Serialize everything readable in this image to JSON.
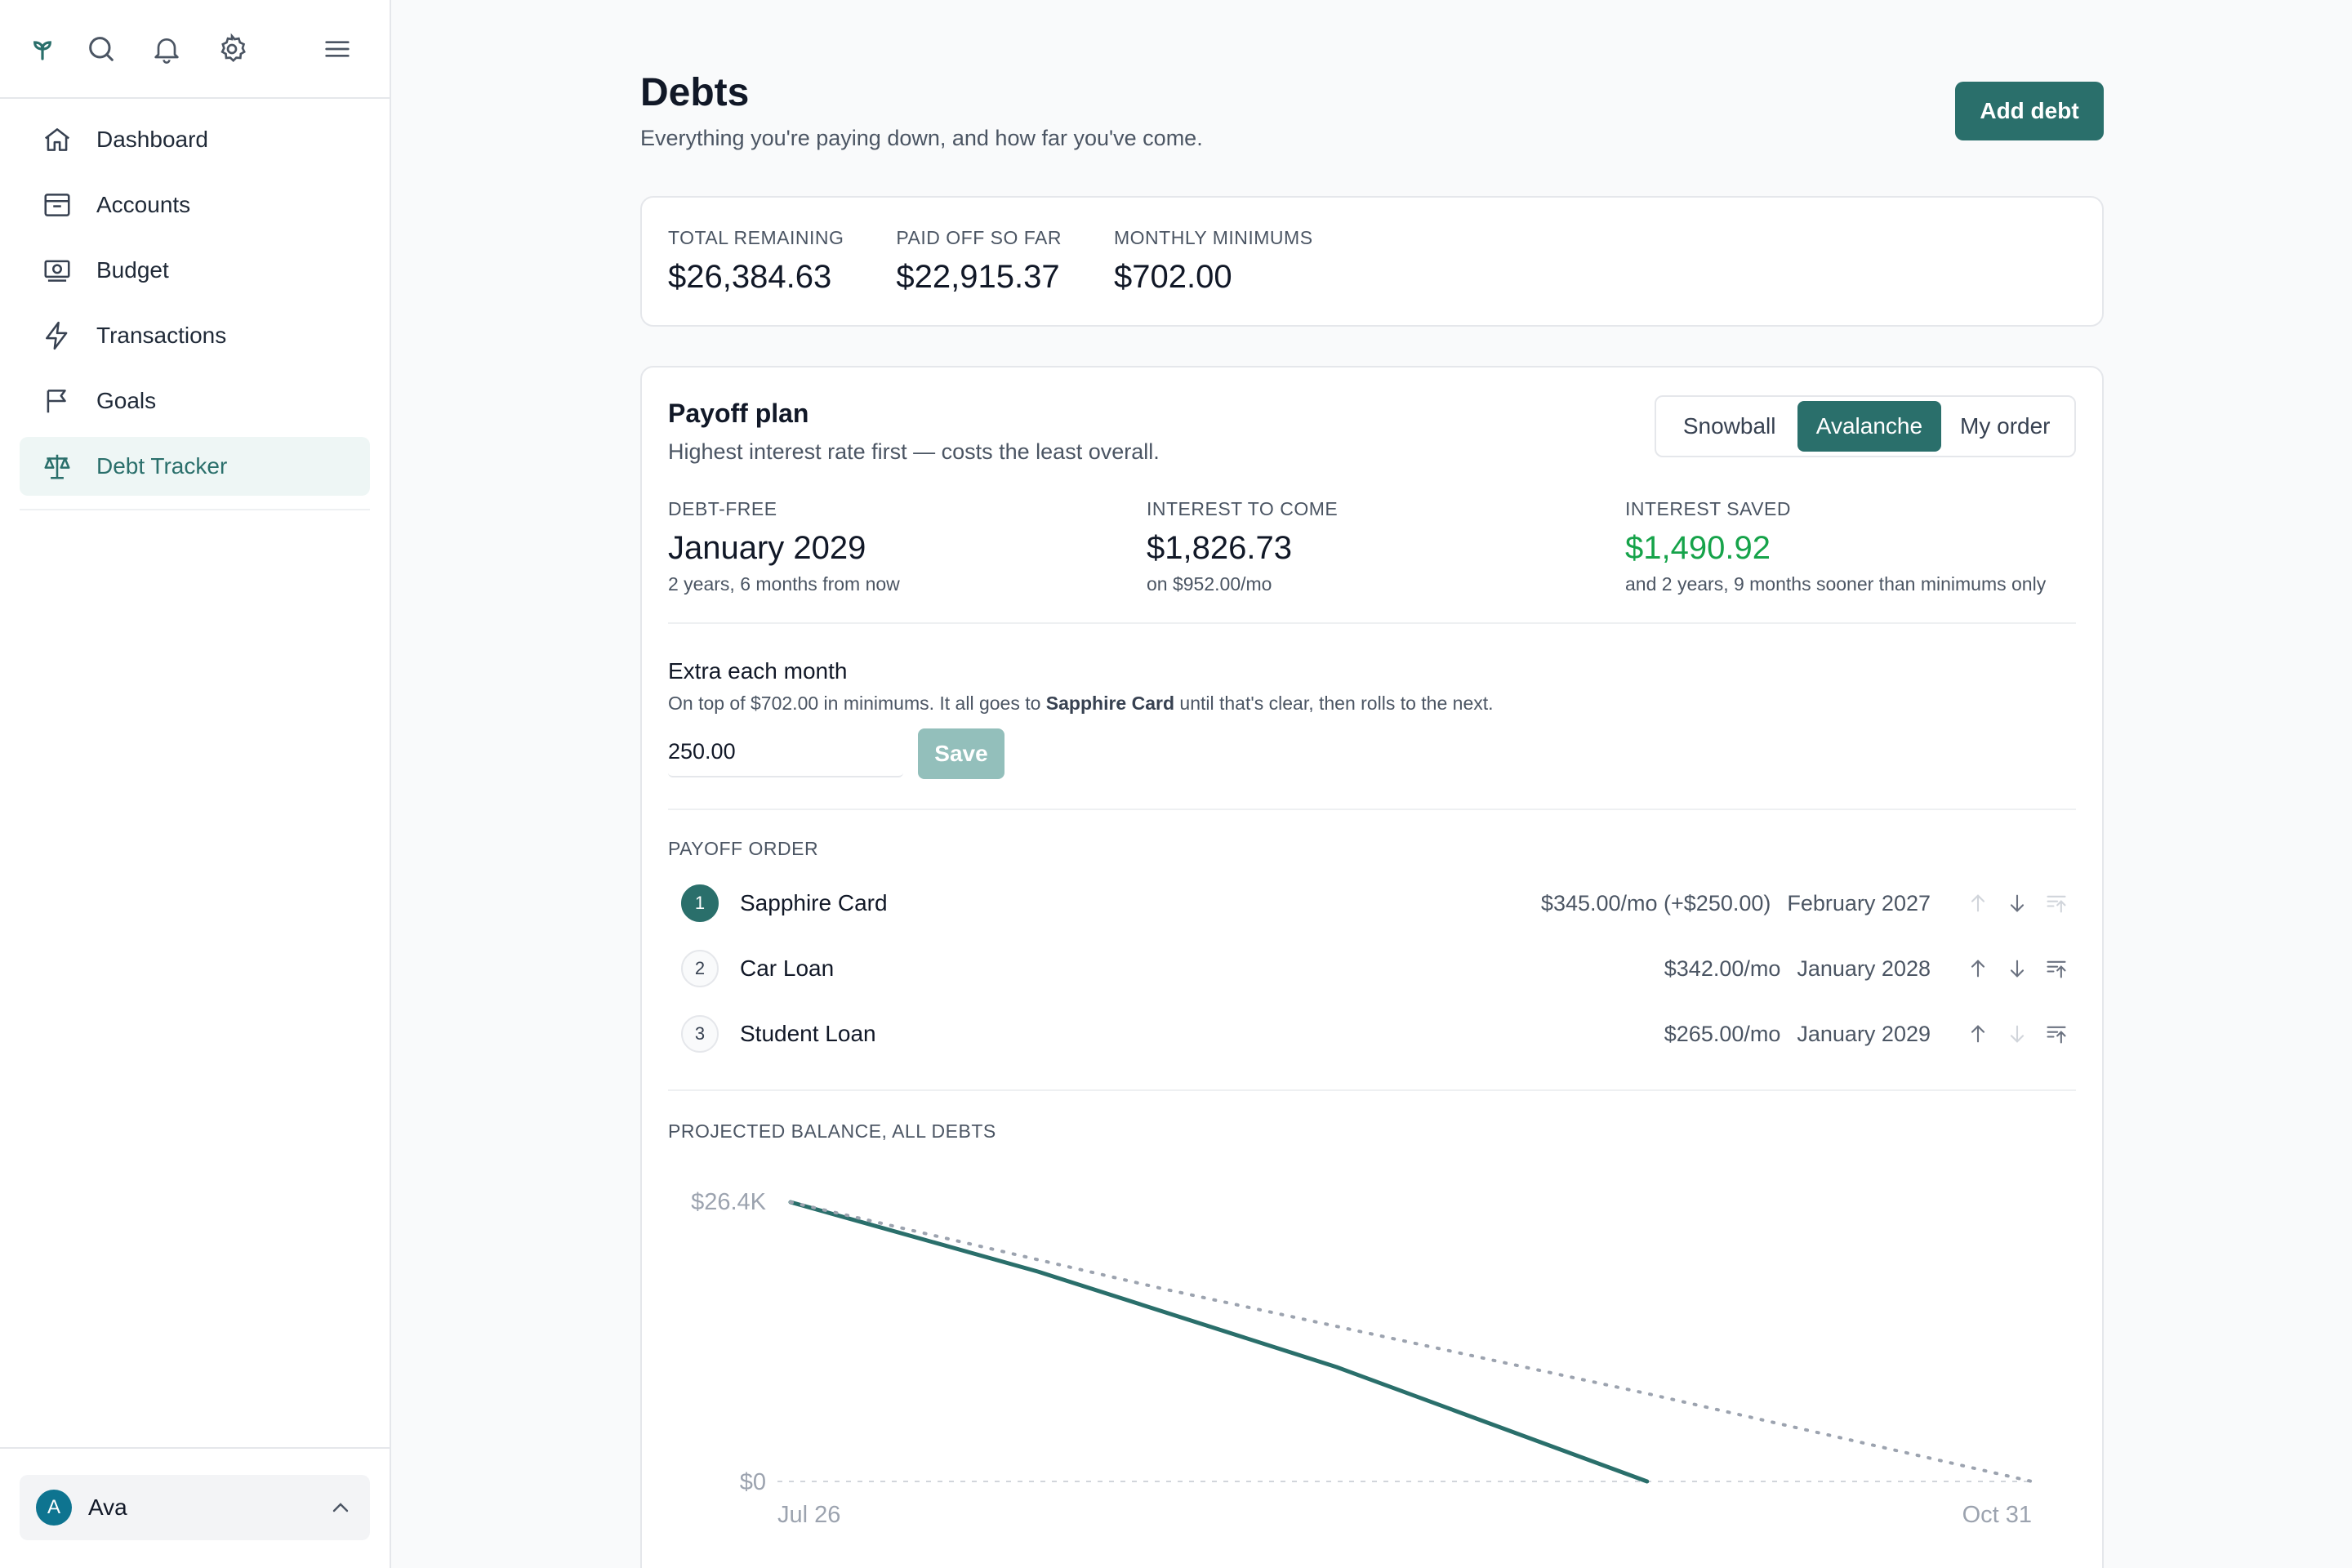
{
  "sidebar": {
    "top_icons": [
      "logo-icon",
      "search-icon",
      "bell-icon",
      "gear-icon",
      "menu-icon"
    ],
    "items": [
      {
        "label": "Dashboard",
        "icon": "home-icon"
      },
      {
        "label": "Accounts",
        "icon": "archive-icon"
      },
      {
        "label": "Budget",
        "icon": "money-icon"
      },
      {
        "label": "Transactions",
        "icon": "bolt-icon"
      },
      {
        "label": "Goals",
        "icon": "flag-icon"
      },
      {
        "label": "Debt Tracker",
        "icon": "scale-icon",
        "active": true
      }
    ],
    "user": {
      "initial": "A",
      "name": "Ava"
    }
  },
  "header": {
    "title": "Debts",
    "subtitle": "Everything you're paying down, and how far you've come.",
    "add_button": "Add debt"
  },
  "summary": [
    {
      "label": "TOTAL REMAINING",
      "value": "$26,384.63"
    },
    {
      "label": "PAID OFF SO FAR",
      "value": "$22,915.37"
    },
    {
      "label": "MONTHLY MINIMUMS",
      "value": "$702.00"
    }
  ],
  "plan": {
    "title": "Payoff plan",
    "subtitle": "Highest interest rate first — costs the least overall.",
    "strategies": [
      "Snowball",
      "Avalanche",
      "My order"
    ],
    "active_strategy": "Avalanche",
    "stats": [
      {
        "label": "DEBT-FREE",
        "value": "January 2029",
        "note": "2 years, 6 months from now"
      },
      {
        "label": "INTEREST TO COME",
        "value": "$1,826.73",
        "note": "on $952.00/mo"
      },
      {
        "label": "INTEREST SAVED",
        "value": "$1,490.92",
        "note": "and 2 years, 9 months sooner than minimums only",
        "color": "#16a34a"
      }
    ],
    "extra": {
      "title": "Extra each month",
      "desc_prefix": "On top of $702.00 in minimums. It all goes to ",
      "desc_target": "Sapphire Card",
      "desc_suffix": " until that's clear, then rolls to the next.",
      "value": "250.00",
      "save_label": "Save"
    },
    "order_label": "PAYOFF ORDER",
    "order": [
      {
        "rank": "1",
        "name": "Sapphire Card",
        "amount": "$345.00/mo (+$250.00)",
        "date": "February 2027"
      },
      {
        "rank": "2",
        "name": "Car Loan",
        "amount": "$342.00/mo",
        "date": "January 2028"
      },
      {
        "rank": "3",
        "name": "Student Loan",
        "amount": "$265.00/mo",
        "date": "January 2029"
      }
    ],
    "chart_label": "PROJECTED BALANCE, ALL DEBTS"
  },
  "chart_data": {
    "type": "line",
    "title": "PROJECTED BALANCE, ALL DEBTS",
    "x_tick_labels": [
      "Jul 26",
      "Oct 31"
    ],
    "y_tick_labels": [
      "$26.4K",
      "$0"
    ],
    "ylim": [
      0,
      26384.63
    ],
    "grid": false,
    "series": [
      {
        "style": "solid",
        "color": "#2a6f6b",
        "x": [
          0,
          0.2,
          0.44,
          0.69
        ],
        "y": [
          26384.63,
          19800,
          10800,
          0
        ]
      },
      {
        "style": "dotted",
        "color": "#9ca3af",
        "x": [
          0,
          0.3,
          0.69,
          1
        ],
        "y": [
          26384.63,
          18200,
          8300,
          0
        ]
      }
    ]
  },
  "colors": {
    "accent": "#2a6f6b",
    "positive": "#16a34a"
  }
}
